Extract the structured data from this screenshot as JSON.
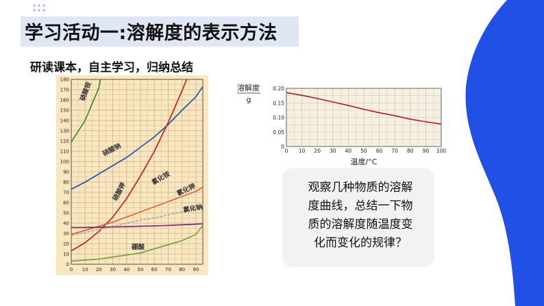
{
  "slide": {
    "title": "学习活动一:溶解度的表示方法",
    "subtitle": "研读课本，自主学习，归纳总结",
    "question": [
      "观察几种物质的溶解",
      "度曲线，总结一下物",
      "质的溶解度随温度变",
      "化而变化的规律？"
    ],
    "colors": {
      "accent": "#2150e6",
      "title_band": "#dfe6f4"
    }
  },
  "chart_data": [
    {
      "type": "line",
      "x_ticks": [
        "0",
        "10",
        "20",
        "30",
        "40",
        "50",
        "60",
        "70",
        "80",
        "90"
      ],
      "y_ticks": [
        "0",
        "10",
        "20",
        "30",
        "40",
        "50",
        "60",
        "70",
        "80",
        "90",
        "100",
        "110",
        "120",
        "130",
        "140",
        "150",
        "160",
        "170",
        "180"
      ],
      "xlim": [
        0,
        95
      ],
      "ylim": [
        0,
        180
      ],
      "grid": true,
      "series": [
        {
          "name": "硝酸铵",
          "color": "#3a8f2c",
          "x": [
            0,
            10,
            20,
            30
          ],
          "y": [
            119,
            140,
            172,
            242
          ]
        },
        {
          "name": "硝酸钠",
          "color": "#1f4fb3",
          "x": [
            0,
            10,
            20,
            30,
            40,
            50,
            60,
            70,
            80,
            90,
            95
          ],
          "y": [
            73,
            80,
            88,
            96,
            104,
            114,
            124,
            136,
            150,
            163,
            173
          ]
        },
        {
          "name": "硝酸钾",
          "color": "#c81e1e",
          "x": [
            0,
            10,
            20,
            30,
            40,
            50,
            60,
            70,
            80,
            90
          ],
          "y": [
            13,
            21,
            32,
            46,
            64,
            86,
            110,
            138,
            169,
            202
          ]
        },
        {
          "name": "氯化铵",
          "color": "#e0622a",
          "x": [
            0,
            10,
            20,
            30,
            40,
            50,
            60,
            70,
            80,
            90,
            95
          ],
          "y": [
            29,
            33,
            37,
            41,
            46,
            51,
            56,
            61,
            66,
            71,
            75
          ]
        },
        {
          "name": "氯化钾",
          "color": "#a8a8a8",
          "x": [
            0,
            10,
            20,
            30,
            40,
            50,
            60,
            70,
            80,
            90,
            95
          ],
          "y": [
            28,
            31,
            34,
            37,
            40,
            43,
            45,
            48,
            51,
            54,
            56
          ]
        },
        {
          "name": "氯化钠",
          "color": "#7a2a6e",
          "x": [
            0,
            10,
            20,
            30,
            40,
            50,
            60,
            70,
            80,
            90,
            95
          ],
          "y": [
            35.7,
            35.8,
            36,
            36.3,
            36.6,
            37,
            37.3,
            37.8,
            38.4,
            39,
            39.4
          ]
        },
        {
          "name": "硼酸",
          "color": "#6ea53a",
          "x": [
            0,
            10,
            20,
            30,
            40,
            50,
            60,
            70,
            80,
            90,
            95
          ],
          "y": [
            3,
            4,
            5,
            7,
            9,
            11,
            15,
            19,
            23,
            29,
            38
          ]
        }
      ]
    },
    {
      "type": "line",
      "ylabel": "溶解度",
      "ylabel_unit": "g",
      "xlabel": "温度/°C",
      "x_ticks": [
        "0",
        "10",
        "20",
        "30",
        "40",
        "50",
        "60",
        "70",
        "80",
        "90",
        "100"
      ],
      "y_ticks": [
        "0",
        "0.05",
        "0.10",
        "0.15",
        "0.20"
      ],
      "xlim": [
        0,
        100
      ],
      "ylim": [
        0,
        0.2
      ],
      "grid": true,
      "series": [
        {
          "color": "#b01a1a",
          "x": [
            0,
            10,
            20,
            30,
            40,
            50,
            60,
            70,
            80,
            90,
            100
          ],
          "y": [
            0.185,
            0.176,
            0.165,
            0.153,
            0.141,
            0.128,
            0.116,
            0.106,
            0.094,
            0.085,
            0.077
          ]
        }
      ]
    }
  ]
}
